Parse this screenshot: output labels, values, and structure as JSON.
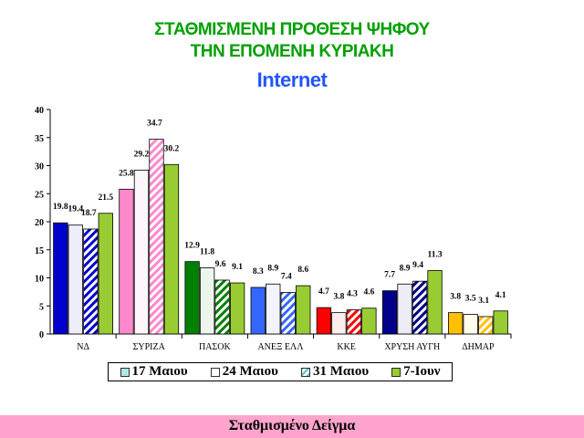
{
  "header": {
    "line1": "ΣΤΑΘΜΙΣΜΕΝΗ ΠΡΟΘΕΣΗ ΨΗΦΟΥ",
    "line2": "ΤΗΝ ΕΠΟΜΕΝΗ ΚΥΡΙΑΚΗ",
    "line3": "Internet"
  },
  "footer": {
    "label": "Σταθμισμένο Δείγμα"
  },
  "colors": {
    "footer_bg": "#ffa5cd",
    "title_green": "#00a000",
    "title_blue": "#2255ff"
  },
  "chart_data": {
    "type": "bar",
    "title": "",
    "xlabel": "",
    "ylabel": "",
    "ylim": [
      0,
      40
    ],
    "yticks": [
      0,
      5,
      10,
      15,
      20,
      25,
      30,
      35,
      40
    ],
    "grid": false,
    "legend_position": "bottom",
    "categories": [
      "ΝΔ",
      "ΣΥΡΙΖΑ",
      "ΠΑΣΟΚ",
      "ΑΝΕΞ ΕΛΛ",
      "ΚΚΕ",
      "ΧΡΥΣΗ ΑΥΓΗ",
      "ΔΗΜΑΡ"
    ],
    "category_colors": [
      "#0000cc",
      "#ff88cc",
      "#008000",
      "#3366ff",
      "#ff0000",
      "#000088",
      "#ffc000"
    ],
    "series": [
      {
        "name": "17 Μαιου",
        "style": "solid",
        "values": [
          19.8,
          25.8,
          12.9,
          8.3,
          4.7,
          7.7,
          3.8
        ]
      },
      {
        "name": "24 Μαιου",
        "style": "light",
        "values": [
          19.4,
          29.2,
          11.8,
          8.9,
          3.8,
          8.9,
          3.5
        ]
      },
      {
        "name": "31 Μαιου",
        "style": "hatched",
        "values": [
          18.7,
          34.7,
          9.6,
          7.4,
          4.3,
          9.4,
          3.1
        ]
      },
      {
        "name": "7-Ιουν",
        "style": "green",
        "values": [
          21.5,
          30.2,
          9.1,
          8.6,
          4.6,
          11.3,
          4.1
        ]
      }
    ],
    "legend_swatches": [
      "#aee8e8",
      "#ffffff",
      "#6fc6c6",
      "#99cc33"
    ]
  }
}
